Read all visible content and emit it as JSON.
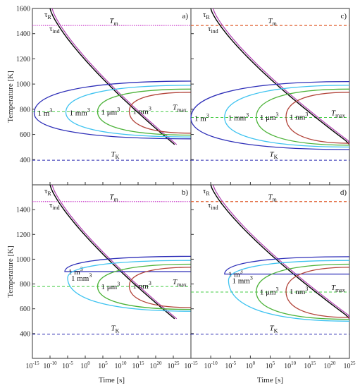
{
  "chart_data": [
    {
      "type": "line",
      "panel": "a)",
      "xlim": [
        -15,
        30
      ],
      "x_scale": "log",
      "xunit": "s",
      "ylim": [
        200,
        1600
      ],
      "t_m": 1465,
      "t_k": 395,
      "t_max": 780,
      "labels": {
        "tau_r": "τ",
        "tau_r_sub": "R",
        "tau_ind": "τ",
        "tau_ind_sub": "ind",
        "t_m": "T",
        "t_m_sub": "m",
        "t_k": "T",
        "t_k_sub": "K",
        "t_max": "T",
        "t_max_sub": "max"
      },
      "nose_curves": [
        {
          "name": "1 m³",
          "label_main": "1 m",
          "label_sup": "3",
          "nose_x": -14.5,
          "nose_y": 770,
          "upper_y": 1023,
          "lower_y": 565,
          "color": "#2e2fb8"
        },
        {
          "name": "1 mm³",
          "label_main": "1 mm",
          "label_sup": "3",
          "nose_x": -5.5,
          "nose_y": 775,
          "upper_y": 990,
          "lower_y": 580,
          "color": "#3ec3f0"
        },
        {
          "name": "1 μm³",
          "label_main": "1 μm",
          "label_sup": "3",
          "nose_x": 3.5,
          "nose_y": 780,
          "upper_y": 960,
          "lower_y": 595,
          "color": "#4db33a"
        },
        {
          "name": "1 nm³",
          "label_main": "1 nm",
          "label_sup": "3",
          "nose_x": 12.5,
          "nose_y": 785,
          "upper_y": 935,
          "lower_y": 610,
          "color": "#b2443a"
        }
      ],
      "x_ticks": [
        -15,
        -10,
        -5,
        0,
        5,
        10,
        15,
        20,
        25
      ],
      "y_ticks": [
        400,
        600,
        800,
        1000,
        1200,
        1400,
        1600
      ],
      "ylabel": "Temperature [K]",
      "xlabel": ""
    },
    {
      "type": "line",
      "panel": "c)",
      "xlim": [
        -15,
        25
      ],
      "x_scale": "log",
      "xunit": "s",
      "ylim": [
        200,
        1600
      ],
      "t_m": 1465,
      "t_k": 395,
      "t_max": 735,
      "labels": {
        "tau_r": "τ",
        "tau_r_sub": "R",
        "tau_ind": "τ",
        "tau_ind_sub": "ind",
        "t_m": "T",
        "t_m_sub": "m",
        "t_k": "T",
        "t_k_sub": "K",
        "t_max": "T",
        "t_max_sub": "max"
      },
      "nose_curves": [
        {
          "name": "1 m³",
          "label_main": "1 m",
          "label_sup": "3",
          "nose_x": -15.0,
          "nose_y": 730,
          "upper_y": 1020,
          "lower_y": 480,
          "color": "#2e2fb8"
        },
        {
          "name": "1 mm³",
          "label_main": "1 mm",
          "label_sup": "3",
          "nose_x": -6.5,
          "nose_y": 735,
          "upper_y": 990,
          "lower_y": 500,
          "color": "#3ec3f0"
        },
        {
          "name": "1 μm³",
          "label_main": "1 μm",
          "label_sup": "3",
          "nose_x": 1.5,
          "nose_y": 738,
          "upper_y": 960,
          "lower_y": 515,
          "color": "#4db33a"
        },
        {
          "name": "1 nm³",
          "label_main": "1 nm",
          "label_sup": "3",
          "nose_x": 9.0,
          "nose_y": 740,
          "upper_y": 935,
          "lower_y": 530,
          "color": "#b2443a"
        }
      ],
      "x_ticks": [
        -15,
        -10,
        -5,
        0,
        5,
        10,
        15,
        20,
        25
      ],
      "y_ticks": [
        400,
        600,
        800,
        1000,
        1200,
        1400,
        1600
      ],
      "ylabel": "",
      "xlabel": ""
    },
    {
      "type": "line",
      "panel": "b)",
      "xlim": [
        -15,
        30
      ],
      "x_scale": "log",
      "xunit": "s",
      "ylim": [
        200,
        1600
      ],
      "t_m": 1465,
      "t_k": 395,
      "t_max": 780,
      "labels": {
        "tau_r": "τ",
        "tau_r_sub": "R",
        "tau_ind": "τ",
        "tau_ind_sub": "ind",
        "t_m": "T",
        "t_m_sub": "m",
        "t_k": "T",
        "t_k_sub": "K",
        "t_max": "T",
        "t_max_sub": "max"
      },
      "nose_curves": [
        {
          "name": "1 m³",
          "label_main": "1 m",
          "label_sup": "3",
          "nose_x": -5.8,
          "nose_y": 900,
          "upper_y": 1023,
          "lower_y": 900,
          "color": "#2e2fb8"
        },
        {
          "name": "1 mm³",
          "label_main": "1 mm",
          "label_sup": "3",
          "nose_x": -5.0,
          "nose_y": 850,
          "upper_y": 990,
          "lower_y": 580,
          "color": "#3ec3f0"
        },
        {
          "name": "1 μm³",
          "label_main": "1 μm",
          "label_sup": "3",
          "nose_x": 3.5,
          "nose_y": 780,
          "upper_y": 960,
          "lower_y": 595,
          "color": "#4db33a"
        },
        {
          "name": "1 nm³",
          "label_main": "1 nm",
          "label_sup": "3",
          "nose_x": 12.5,
          "nose_y": 785,
          "upper_y": 935,
          "lower_y": 610,
          "color": "#b2443a"
        }
      ],
      "x_ticks": [
        -15,
        -10,
        -5,
        0,
        5,
        10,
        15,
        20,
        25
      ],
      "y_ticks": [
        400,
        600,
        800,
        1000,
        1200,
        1400
      ],
      "ylabel": "Temperature [K]",
      "xlabel": "Time [s]"
    },
    {
      "type": "line",
      "panel": "d)",
      "xlim": [
        -15,
        25
      ],
      "x_scale": "log",
      "xunit": "s",
      "ylim": [
        200,
        1600
      ],
      "t_m": 1465,
      "t_k": 395,
      "t_max": 735,
      "labels": {
        "tau_r": "τ",
        "tau_r_sub": "R",
        "tau_ind": "τ",
        "tau_ind_sub": "ind",
        "t_m": "T",
        "t_m_sub": "m",
        "t_k": "T",
        "t_k_sub": "K",
        "t_max": "T",
        "t_max_sub": "max"
      },
      "nose_curves": [
        {
          "name": "1 m³",
          "label_main": "1 m",
          "label_sup": "3",
          "nose_x": -6.5,
          "nose_y": 880,
          "upper_y": 1020,
          "lower_y": 880,
          "color": "#2e2fb8"
        },
        {
          "name": "1 mm³",
          "label_main": "1 mm",
          "label_sup": "3",
          "nose_x": -5.5,
          "nose_y": 830,
          "upper_y": 990,
          "lower_y": 500,
          "color": "#3ec3f0"
        },
        {
          "name": "1 μm³",
          "label_main": "1 μm",
          "label_sup": "3",
          "nose_x": 1.5,
          "nose_y": 738,
          "upper_y": 960,
          "lower_y": 515,
          "color": "#4db33a"
        },
        {
          "name": "1 nm³",
          "label_main": "1 nm",
          "label_sup": "3",
          "nose_x": 9.0,
          "nose_y": 740,
          "upper_y": 935,
          "lower_y": 530,
          "color": "#b2443a"
        }
      ],
      "x_ticks": [
        -15,
        -10,
        -5,
        0,
        5,
        10,
        15,
        20,
        25
      ],
      "y_ticks": [
        400,
        600,
        800,
        1000,
        1200,
        1400
      ],
      "ylabel": "",
      "xlabel": "Time [s]"
    }
  ],
  "colors": {
    "t_m_line_a": "#cc44cc",
    "t_m_line_c": "#e06030",
    "t_k_line": "#2a2ab0",
    "t_max_line": "#44cc44",
    "tau_r": "#000000",
    "tau_ind": "#b040b0"
  }
}
